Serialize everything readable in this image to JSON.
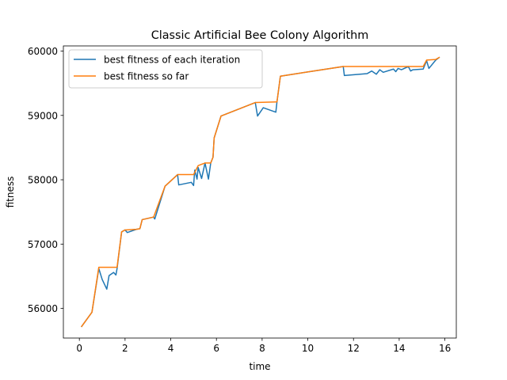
{
  "chart_data": {
    "type": "line",
    "title": "Classic Artificial Bee Colony Algorithm",
    "xlabel": "time",
    "ylabel": "fitness",
    "xlim": [
      -0.7,
      16.5
    ],
    "ylim": [
      55540,
      60080
    ],
    "xticks": [
      0,
      2,
      4,
      6,
      8,
      10,
      12,
      14,
      16
    ],
    "yticks": [
      56000,
      57000,
      58000,
      59000,
      60000
    ],
    "grid": false,
    "legend_position": "top-left",
    "series": [
      {
        "name": "best fitness of each iteration",
        "color": "#1f77b4",
        "x": [
          0.1,
          0.55,
          0.85,
          1.0,
          1.2,
          1.3,
          1.5,
          1.6,
          1.65,
          1.85,
          2.0,
          2.1,
          2.5,
          2.65,
          2.75,
          3.25,
          3.3,
          3.75,
          4.3,
          4.35,
          4.9,
          5.0,
          5.05,
          5.15,
          5.2,
          5.35,
          5.5,
          5.65,
          5.75,
          5.85,
          5.9,
          6.2,
          7.7,
          7.8,
          8.05,
          8.6,
          8.65,
          8.8,
          11.55,
          11.6,
          12.6,
          12.8,
          13.0,
          13.15,
          13.3,
          13.75,
          13.85,
          13.95,
          14.1,
          14.4,
          14.5,
          14.6,
          15.05,
          15.2,
          15.3,
          15.6,
          15.75
        ],
        "y": [
          55720,
          55940,
          56620,
          56450,
          56300,
          56510,
          56560,
          56520,
          56620,
          57190,
          57220,
          57180,
          57230,
          57240,
          57380,
          57420,
          57390,
          57900,
          58080,
          57920,
          57960,
          57910,
          58150,
          58010,
          58190,
          58020,
          58260,
          58010,
          58260,
          58350,
          58650,
          58990,
          59200,
          58990,
          59120,
          59050,
          59210,
          59610,
          59760,
          59620,
          59650,
          59690,
          59640,
          59710,
          59670,
          59720,
          59680,
          59730,
          59710,
          59760,
          59690,
          59710,
          59720,
          59850,
          59730,
          59860,
          59900
        ]
      },
      {
        "name": "best fitness so far",
        "color": "#ff7f0e",
        "x": [
          0.1,
          0.55,
          0.85,
          1.6,
          1.65,
          1.85,
          2.0,
          2.5,
          2.65,
          2.75,
          3.25,
          3.75,
          4.3,
          4.9,
          5.0,
          5.2,
          5.5,
          5.75,
          5.85,
          5.9,
          6.2,
          7.7,
          8.6,
          8.65,
          8.8,
          11.55,
          14.95,
          15.05,
          15.2,
          15.6,
          15.75
        ],
        "y": [
          55720,
          55940,
          56640,
          56640,
          56640,
          57190,
          57220,
          57230,
          57240,
          57380,
          57420,
          57900,
          58080,
          58080,
          58080,
          58220,
          58260,
          58260,
          58350,
          58650,
          58990,
          59200,
          59210,
          59210,
          59610,
          59760,
          59760,
          59760,
          59860,
          59870,
          59900
        ]
      }
    ]
  }
}
